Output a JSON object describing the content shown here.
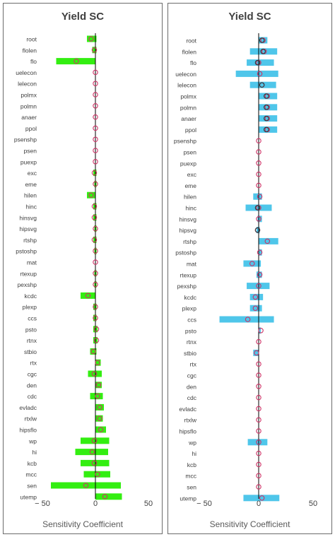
{
  "left": {
    "title": "Yield SC",
    "xlabel": "Sensitivity Coefficient",
    "bar_color": "#33ee11"
  },
  "right": {
    "title": "Yield SC",
    "xlabel": "Sensitivity Coefficient",
    "bar_color": "#4fc6ea"
  },
  "marker_colors": {
    "circle": "#cc3366",
    "dark": "#333333"
  },
  "chart_data": [
    {
      "type": "bar",
      "orientation": "horizontal",
      "title": "Yield SC",
      "xlabel": "Sensitivity Coefficient",
      "xlim": [
        -50,
        50
      ],
      "xticks": [
        -50,
        0,
        50
      ],
      "categories": [
        "root",
        "flolen",
        "flo",
        "uelecon",
        "lelecon",
        "polmx",
        "polmn",
        "anaer",
        "ppol",
        "psenshp",
        "psen",
        "puexp",
        "exc",
        "eme",
        "hilen",
        "hinc",
        "hinsvg",
        "hipsvg",
        "rtshp",
        "pstoshp",
        "mat",
        "rtexup",
        "pexshp",
        "kcdc",
        "plexp",
        "ccs",
        "psto",
        "rtnx",
        "stbio",
        "rtx",
        "cgc",
        "den",
        "cdc",
        "evladc",
        "rtxlw",
        "hipsflo",
        "wp",
        "hi",
        "kcb",
        "mcc",
        "sen",
        "utemp"
      ],
      "bar_low": [
        -8,
        -3,
        -37,
        0,
        0,
        0,
        0,
        0,
        0,
        0,
        0,
        0,
        -2,
        -1,
        -8,
        -2,
        -2,
        -1,
        -2,
        -1,
        0,
        -1,
        -1,
        -14,
        -2,
        -2,
        -2,
        -2,
        -5,
        0,
        -7,
        0,
        -5,
        0,
        0,
        0,
        -14,
        -19,
        -14,
        -11,
        -42,
        0
      ],
      "bar_high": [
        1,
        1,
        0,
        0,
        0,
        0,
        0,
        0,
        0,
        0,
        0,
        0,
        1,
        1,
        0,
        1,
        1,
        1,
        1,
        1,
        0,
        1,
        1,
        0,
        1,
        1,
        2,
        2,
        1,
        5,
        6,
        6,
        7,
        8,
        7,
        10,
        13,
        12,
        13,
        14,
        24,
        25
      ],
      "circle": [
        -4,
        -1,
        -18,
        0,
        0,
        0,
        0,
        0,
        0,
        0,
        0,
        0,
        -1,
        0,
        -4,
        -1,
        -1,
        0,
        -1,
        0,
        0,
        0,
        0,
        -7,
        0,
        0,
        1,
        1,
        -2,
        2,
        -1,
        3,
        2,
        4,
        4,
        5,
        -1,
        -3,
        -1,
        2,
        -9,
        9
      ],
      "ylabel": ""
    },
    {
      "type": "bar",
      "orientation": "horizontal",
      "title": "Yield SC",
      "xlabel": "Sensitivity Coefficient",
      "xlim": [
        -50,
        50
      ],
      "xticks": [
        -50,
        0,
        50
      ],
      "categories": [
        "root",
        "flolen",
        "flo",
        "uelecon",
        "lelecon",
        "polmx",
        "polmn",
        "anaer",
        "ppol",
        "psenshp",
        "psen",
        "puexp",
        "exc",
        "eme",
        "hilen",
        "hinc",
        "hinsvg",
        "hipsvg",
        "rtshp",
        "pstoshp",
        "mat",
        "rtexup",
        "pexshp",
        "kcdc",
        "plexp",
        "ccs",
        "psto",
        "rtnx",
        "stbio",
        "rtx",
        "cgc",
        "den",
        "cdc",
        "evladc",
        "rtxlw",
        "hipsflo",
        "wp",
        "hi",
        "kcb",
        "mcc",
        "sen",
        "utemp"
      ],
      "bar_low": [
        0,
        -8,
        -11,
        -21,
        -8,
        0,
        0,
        0,
        0,
        0,
        0,
        0,
        0,
        0,
        -5,
        -12,
        -1,
        -2,
        0,
        0,
        -14,
        -2,
        -11,
        -8,
        -8,
        -36,
        0,
        0,
        -5,
        0,
        0,
        0,
        0,
        0,
        0,
        0,
        -10,
        0,
        0,
        0,
        0,
        -14
      ],
      "bar_high": [
        8,
        17,
        14,
        18,
        16,
        17,
        17,
        17,
        17,
        0,
        0,
        0,
        0,
        0,
        3,
        12,
        3,
        1,
        18,
        3,
        2,
        3,
        10,
        4,
        3,
        14,
        2,
        0,
        0,
        0,
        0,
        0,
        0,
        0,
        0,
        0,
        8,
        0,
        0,
        0,
        0,
        19
      ],
      "circle": [
        4,
        5,
        0,
        1,
        3,
        8,
        8,
        8,
        8,
        0,
        0,
        0,
        0,
        0,
        1,
        0,
        0,
        -1,
        8,
        1,
        -6,
        1,
        0,
        -3,
        -3,
        -10,
        2,
        0,
        -2,
        0,
        0,
        0,
        0,
        0,
        0,
        0,
        0,
        0,
        0,
        0,
        0,
        3
      ],
      "dark": [
        3,
        4,
        -1,
        0,
        3,
        7,
        7,
        7,
        7,
        0,
        0,
        0,
        0,
        0,
        0,
        -1,
        0,
        -1,
        0,
        0,
        0,
        0,
        0,
        0,
        0,
        0,
        0,
        0,
        0,
        0,
        0,
        0,
        0,
        0,
        0,
        0,
        0,
        0,
        0,
        0,
        0,
        0
      ]
    }
  ]
}
